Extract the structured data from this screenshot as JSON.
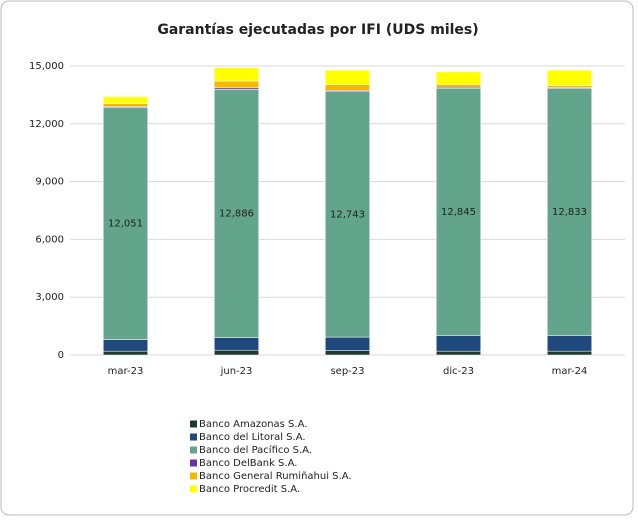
{
  "chart_data": {
    "type": "stacked_bar",
    "title": "Garantías ejecutadas por IFI (UDS miles)",
    "categories": [
      "mar-23",
      "jun-23",
      "sep-23",
      "dic-23",
      "mar-24"
    ],
    "series": [
      {
        "name": "Banco Amazonas S.A.",
        "color": "#1f3b2e",
        "values": [
          200,
          250,
          230,
          200,
          200
        ]
      },
      {
        "name": "Banco del Litoral S.A.",
        "color": "#1f497d",
        "values": [
          600,
          650,
          700,
          800,
          800
        ]
      },
      {
        "name": "Banco del Pacífico S.A.",
        "color": "#62a58c",
        "values": [
          12051,
          12886,
          12743,
          12845,
          12833
        ],
        "value_labels": [
          "12,051",
          "12,886",
          "12,743",
          "12,845",
          "12,833"
        ]
      },
      {
        "name": "Banco DelBank S.A.",
        "color": "#7030a0",
        "values": [
          50,
          80,
          60,
          50,
          50
        ]
      },
      {
        "name": "Banco General Rumiñahui S.A.",
        "color": "#f5b800",
        "values": [
          150,
          350,
          300,
          150,
          100
        ]
      },
      {
        "name": "Banco Procredit S.A.",
        "color": "#ffff00",
        "values": [
          350,
          700,
          750,
          650,
          800
        ]
      }
    ],
    "ylim": [
      0,
      15000
    ],
    "yticks": [
      0,
      {
        "value": 3000,
        "label": "3,000"
      },
      {
        "value": 6000,
        "label": "6,000"
      },
      {
        "value": 9000,
        "label": "9,000"
      },
      {
        "value": 12000,
        "label": "12,000"
      },
      {
        "value": 15000,
        "label": "15,000"
      }
    ],
    "grid": true
  }
}
